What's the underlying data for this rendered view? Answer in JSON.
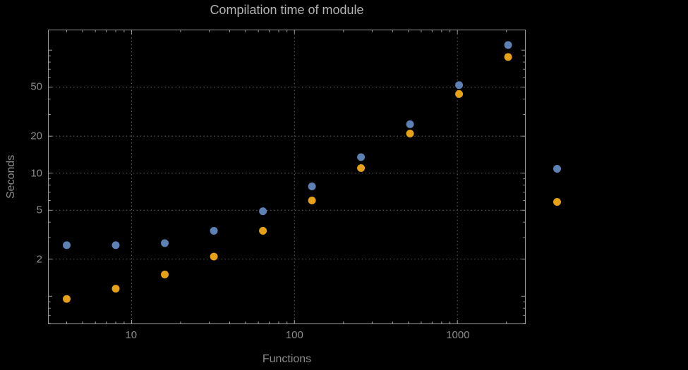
{
  "colors": {
    "background": "#000000",
    "frame": "#9a9a9a",
    "grid": "#5d5d5d",
    "title_text": "#b3b3b3",
    "axis_text": "#8c8c8c",
    "series_blue": "#5e81b5",
    "series_orange": "#e6a117"
  },
  "chart_data": {
    "type": "scatter",
    "title": "Compilation time of module",
    "xlabel": "Functions",
    "ylabel": "Seconds",
    "x_scale": "log",
    "y_scale": "log",
    "xlim": [
      3.1,
      2600
    ],
    "ylim": [
      0.6,
      145
    ],
    "x_ticks": [
      10,
      100,
      1000
    ],
    "y_ticks": [
      2,
      5,
      10,
      20,
      50
    ],
    "grid": true,
    "grid_style": "dotted",
    "x": [
      4,
      8,
      16,
      32,
      64,
      128,
      256,
      512,
      1024,
      2048
    ],
    "series": [
      {
        "name": "blue",
        "color": "#5e81b5",
        "values": [
          2.6,
          2.6,
          2.7,
          3.4,
          4.9,
          7.8,
          13.5,
          25,
          52,
          110
        ]
      },
      {
        "name": "orange",
        "color": "#e6a117",
        "values": [
          0.95,
          1.15,
          1.5,
          2.1,
          3.4,
          6.0,
          11,
          21,
          44,
          88
        ]
      }
    ],
    "legend": {
      "position": "right",
      "labels": [
        "",
        ""
      ]
    }
  }
}
